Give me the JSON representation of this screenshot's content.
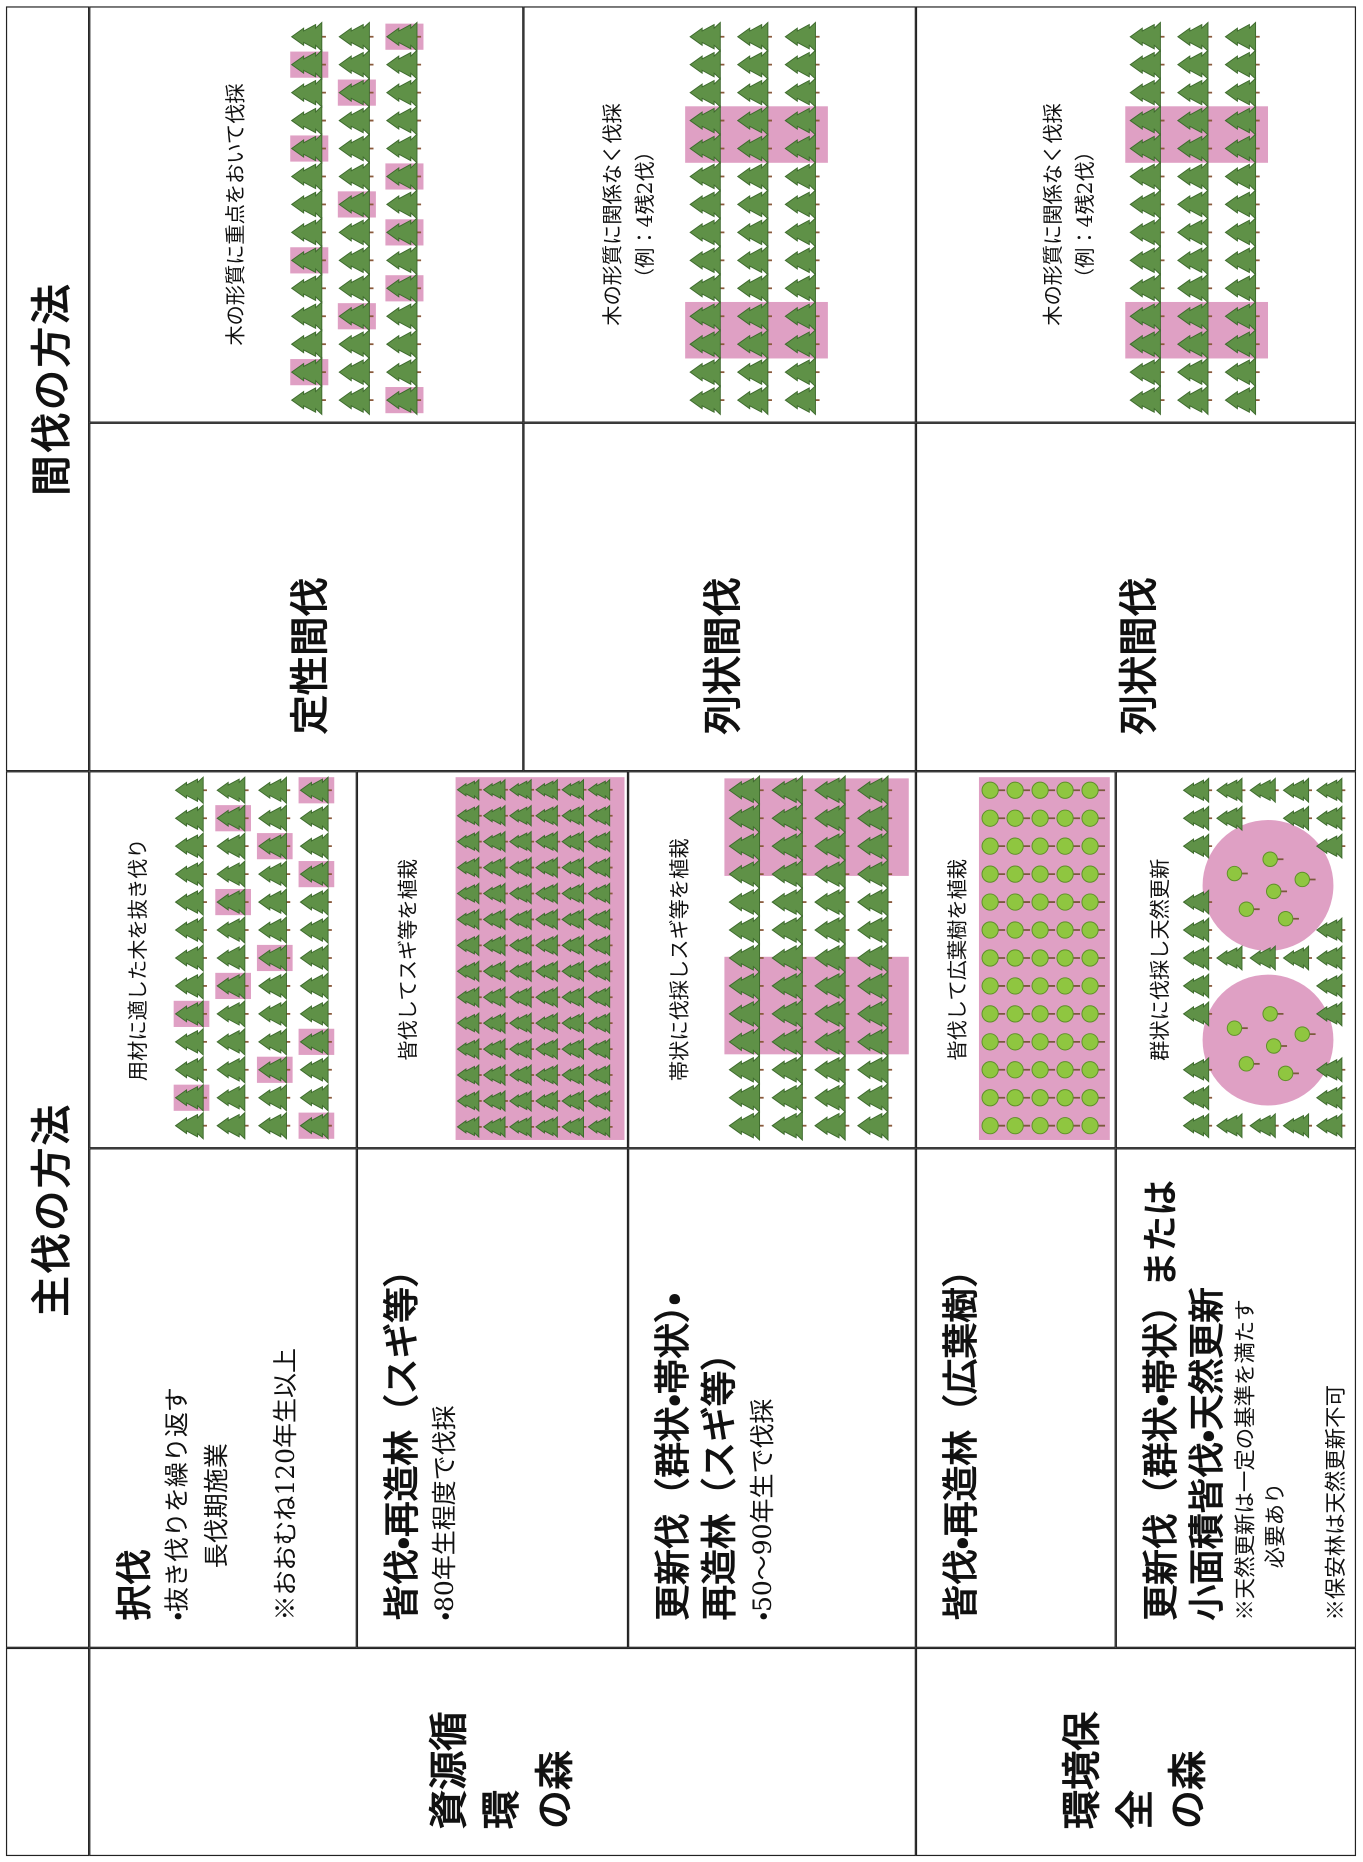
{
  "header": {
    "main_cut": "主伐の方法",
    "thinning": "間伐の方法"
  },
  "forests": [
    {
      "lines": [
        "資源循環",
        "の森"
      ]
    },
    {
      "lines": [
        "環境保全",
        "の森"
      ]
    }
  ],
  "main_cut": [
    {
      "title": [
        "択伐"
      ],
      "notes": [
        "・抜き伐りを繰り返す",
        "長伐期施業",
        "※おおむね120年生以上"
      ],
      "caption": "用材に適した木を抜き伐り"
    },
    {
      "title": [
        "皆伐・再造林（スギ等）"
      ],
      "notes": [
        "・80年生程度で伐採"
      ],
      "caption": "皆伐してスギ等を植栽"
    },
    {
      "title": [
        "更新伐（群状・帯状）・",
        "再造林（スギ等）"
      ],
      "notes": [
        "・50～90年生で伐採"
      ],
      "caption": "帯状に伐採しスギ等を植栽"
    },
    {
      "title": [
        "皆伐・再造林（広葉樹）"
      ],
      "caption": "皆伐して広葉樹を植栽"
    },
    {
      "title": [
        "更新伐（群状・帯状）または",
        "小面積皆伐・天然更新"
      ],
      "notes": [
        "※天然更新は一定の基準を満たす",
        "必要あり",
        "※保安林は天然更新不可"
      ],
      "caption": "群状に伐採し天然更新"
    }
  ],
  "thinning": [
    {
      "method": "定性間伐",
      "caption": [
        "木の形質に重点をおいて伐採"
      ]
    },
    {
      "method": "列状間伐",
      "caption": [
        "木の形質に関係なく伐採",
        "（例：4残2伐）"
      ]
    },
    {
      "method": "列状間伐",
      "caption": [
        "木の形質に関係なく伐採",
        "（例：4残2伐）"
      ]
    }
  ]
}
